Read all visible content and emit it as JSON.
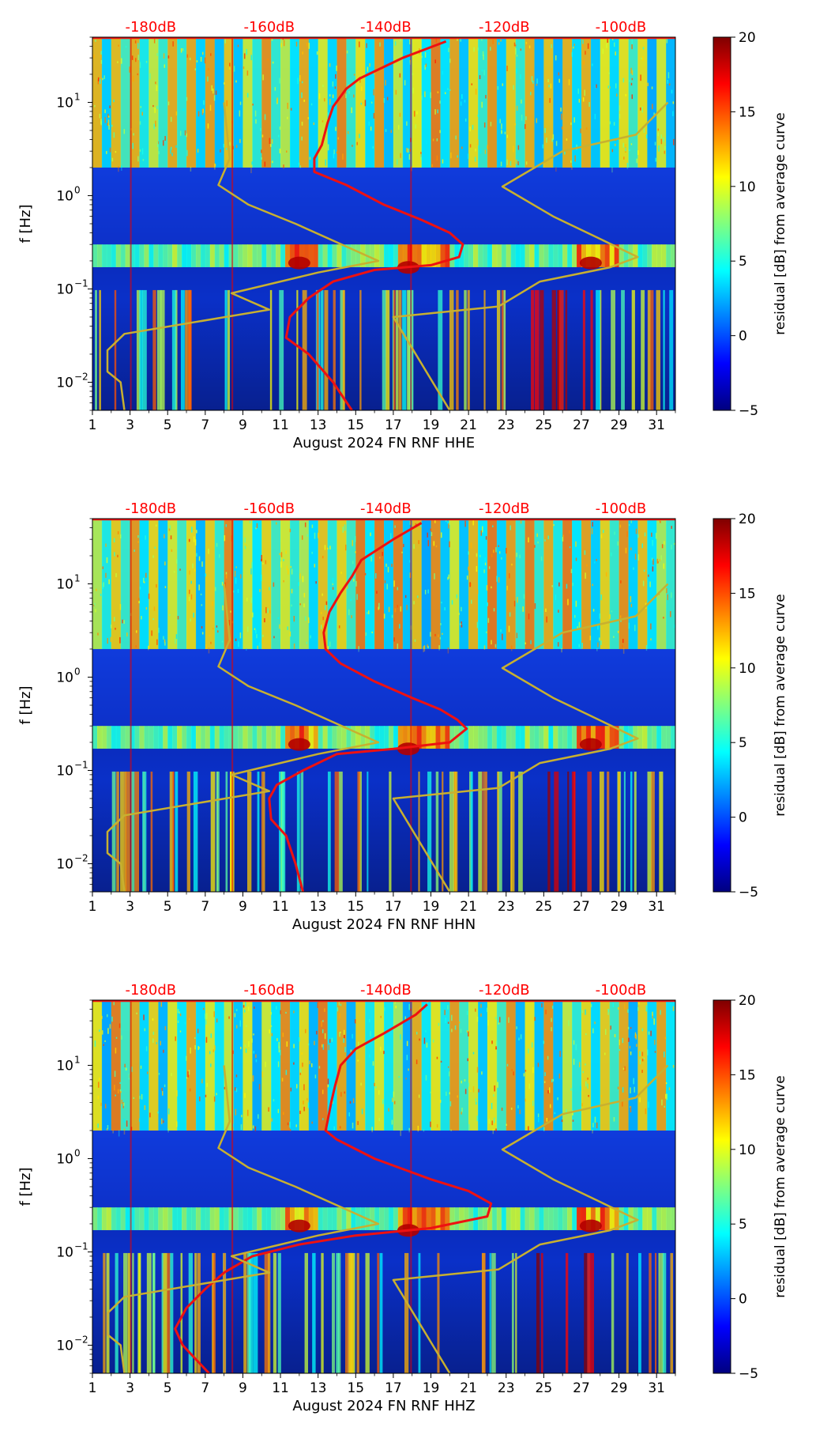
{
  "figure": {
    "colorbar": {
      "label": "residual [dB] from average curve",
      "min": -5,
      "max": 20,
      "ticks": [
        "−5",
        "0",
        "5",
        "10",
        "15",
        "20"
      ],
      "tick_values": [
        -5,
        0,
        5,
        10,
        15,
        20
      ],
      "colormap": "jet"
    },
    "colors": {
      "psd_curve": "#ee1111",
      "noise_model": "#c8b030",
      "db_labels": "#ff0000",
      "background": "#ffffff"
    }
  },
  "chart_data": [
    {
      "type": "heatmap",
      "title": "",
      "xlabel": "August 2024 FN RNF  HHE",
      "ylabel": "f [Hz]",
      "x_range": [
        1,
        32
      ],
      "y_range": [
        0.005,
        50
      ],
      "y_scale": "log",
      "x_ticks": [
        "1",
        "3",
        "5",
        "7",
        "9",
        "11",
        "13",
        "15",
        "17",
        "19",
        "21",
        "23",
        "25",
        "27",
        "29",
        "31"
      ],
      "y_ticks": [
        {
          "value": 10,
          "base": "10",
          "exp": "1"
        },
        {
          "value": 1,
          "base": "10",
          "exp": "0"
        },
        {
          "value": 0.1,
          "base": "10",
          "exp": "−1"
        },
        {
          "value": 0.01,
          "base": "10",
          "exp": "−2"
        }
      ],
      "top_labels": [
        "-180dB",
        "-160dB",
        "-140dB",
        "-120dB",
        "-100dB"
      ],
      "top_label_days": [
        4.1,
        10.4,
        16.6,
        22.9,
        29.1
      ],
      "series": [
        {
          "name": "average PSD curve",
          "color": "red",
          "points": [
            [
              19.8,
              45
            ],
            [
              17.5,
              30
            ],
            [
              15.2,
              18
            ],
            [
              14.5,
              14
            ],
            [
              13.8,
              9
            ],
            [
              13.5,
              6
            ],
            [
              13.2,
              3.5
            ],
            [
              12.8,
              2.5
            ],
            [
              12.8,
              1.8
            ],
            [
              14.5,
              1.3
            ],
            [
              16.5,
              0.8
            ],
            [
              18.5,
              0.55
            ],
            [
              20.0,
              0.4
            ],
            [
              20.7,
              0.3
            ],
            [
              20.5,
              0.22
            ],
            [
              19.0,
              0.18
            ],
            [
              16.0,
              0.16
            ],
            [
              13.8,
              0.12
            ],
            [
              12.5,
              0.08
            ],
            [
              11.5,
              0.05
            ],
            [
              11.3,
              0.03
            ],
            [
              12.5,
              0.02
            ],
            [
              13.8,
              0.01
            ],
            [
              14.8,
              0.005
            ]
          ]
        },
        {
          "name": "noise model low",
          "color": "olive",
          "points": [
            [
              8.0,
              10
            ],
            [
              8.3,
              2.5
            ],
            [
              7.7,
              1.3
            ],
            [
              9.3,
              0.8
            ],
            [
              11.8,
              0.5
            ],
            [
              16.2,
              0.2
            ],
            [
              13.0,
              0.15
            ],
            [
              8.4,
              0.09
            ],
            [
              10.4,
              0.06
            ],
            [
              2.7,
              0.033
            ],
            [
              1.8,
              0.022
            ],
            [
              1.8,
              0.013
            ],
            [
              2.5,
              0.01
            ],
            [
              2.7,
              0.005
            ]
          ]
        },
        {
          "name": "noise model high",
          "color": "olive",
          "points": [
            [
              31.6,
              10
            ],
            [
              29.9,
              4.5
            ],
            [
              26.0,
              3.0
            ],
            [
              22.8,
              1.25
            ],
            [
              25.5,
              0.6
            ],
            [
              30.0,
              0.22
            ],
            [
              28.5,
              0.17
            ],
            [
              24.8,
              0.12
            ],
            [
              22.6,
              0.065
            ],
            [
              17.0,
              0.05
            ],
            [
              20.0,
              0.005
            ]
          ]
        }
      ]
    },
    {
      "type": "heatmap",
      "title": "",
      "xlabel": "August 2024 FN RNF  HHN",
      "ylabel": "f [Hz]",
      "x_range": [
        1,
        32
      ],
      "y_range": [
        0.005,
        50
      ],
      "y_scale": "log",
      "x_ticks": [
        "1",
        "3",
        "5",
        "7",
        "9",
        "11",
        "13",
        "15",
        "17",
        "19",
        "21",
        "23",
        "25",
        "27",
        "29",
        "31"
      ],
      "y_ticks": [
        {
          "value": 10,
          "base": "10",
          "exp": "1"
        },
        {
          "value": 1,
          "base": "10",
          "exp": "0"
        },
        {
          "value": 0.1,
          "base": "10",
          "exp": "−1"
        },
        {
          "value": 0.01,
          "base": "10",
          "exp": "−2"
        }
      ],
      "top_labels": [
        "-180dB",
        "-160dB",
        "-140dB",
        "-120dB",
        "-100dB"
      ],
      "top_label_days": [
        4.1,
        10.4,
        16.6,
        22.9,
        29.1
      ],
      "series": [
        {
          "name": "average PSD curve",
          "color": "red",
          "points": [
            [
              18.5,
              45
            ],
            [
              17.0,
              30
            ],
            [
              15.3,
              18
            ],
            [
              14.8,
              12
            ],
            [
              14.2,
              8
            ],
            [
              13.6,
              5
            ],
            [
              13.3,
              3
            ],
            [
              13.4,
              2
            ],
            [
              14.2,
              1.4
            ],
            [
              16.0,
              0.9
            ],
            [
              18.0,
              0.6
            ],
            [
              19.5,
              0.45
            ],
            [
              20.4,
              0.35
            ],
            [
              20.9,
              0.28
            ],
            [
              20.0,
              0.2
            ],
            [
              17.0,
              0.17
            ],
            [
              14.0,
              0.15
            ],
            [
              12.2,
              0.1
            ],
            [
              10.8,
              0.07
            ],
            [
              10.4,
              0.05
            ],
            [
              10.5,
              0.03
            ],
            [
              11.3,
              0.02
            ],
            [
              11.8,
              0.01
            ],
            [
              12.2,
              0.005
            ]
          ]
        },
        {
          "name": "noise model low",
          "color": "olive",
          "points": [
            [
              8.0,
              10
            ],
            [
              8.3,
              2.5
            ],
            [
              7.7,
              1.3
            ],
            [
              9.3,
              0.8
            ],
            [
              11.8,
              0.5
            ],
            [
              16.2,
              0.2
            ],
            [
              13.0,
              0.15
            ],
            [
              8.4,
              0.09
            ],
            [
              10.4,
              0.06
            ],
            [
              2.7,
              0.033
            ],
            [
              1.8,
              0.022
            ],
            [
              1.8,
              0.013
            ],
            [
              2.5,
              0.01
            ],
            [
              2.7,
              0.005
            ]
          ]
        },
        {
          "name": "noise model high",
          "color": "olive",
          "points": [
            [
              31.6,
              10
            ],
            [
              29.9,
              4.5
            ],
            [
              26.0,
              3.0
            ],
            [
              22.8,
              1.25
            ],
            [
              25.5,
              0.6
            ],
            [
              30.0,
              0.22
            ],
            [
              28.5,
              0.17
            ],
            [
              24.8,
              0.12
            ],
            [
              22.6,
              0.065
            ],
            [
              17.0,
              0.05
            ],
            [
              20.0,
              0.005
            ]
          ]
        }
      ]
    },
    {
      "type": "heatmap",
      "title": "",
      "xlabel": "August 2024 FN RNF  HHZ",
      "ylabel": "f [Hz]",
      "x_range": [
        1,
        32
      ],
      "y_range": [
        0.005,
        50
      ],
      "y_scale": "log",
      "x_ticks": [
        "1",
        "3",
        "5",
        "7",
        "9",
        "11",
        "13",
        "15",
        "17",
        "19",
        "21",
        "23",
        "25",
        "27",
        "29",
        "31"
      ],
      "y_ticks": [
        {
          "value": 10,
          "base": "10",
          "exp": "1"
        },
        {
          "value": 1,
          "base": "10",
          "exp": "0"
        },
        {
          "value": 0.1,
          "base": "10",
          "exp": "−1"
        },
        {
          "value": 0.01,
          "base": "10",
          "exp": "−2"
        }
      ],
      "top_labels": [
        "-180dB",
        "-160dB",
        "-140dB",
        "-120dB",
        "-100dB"
      ],
      "top_label_days": [
        4.1,
        10.4,
        16.6,
        22.9,
        29.1
      ],
      "series": [
        {
          "name": "average PSD curve",
          "color": "red",
          "points": [
            [
              18.8,
              45
            ],
            [
              18.2,
              35
            ],
            [
              16.5,
              22
            ],
            [
              15.0,
              15
            ],
            [
              14.2,
              10
            ],
            [
              13.9,
              6
            ],
            [
              13.7,
              4
            ],
            [
              13.5,
              2.5
            ],
            [
              13.4,
              2.0
            ],
            [
              14.0,
              1.6
            ],
            [
              16.0,
              1.0
            ],
            [
              19.0,
              0.6
            ],
            [
              21.0,
              0.45
            ],
            [
              22.2,
              0.33
            ],
            [
              22.0,
              0.24
            ],
            [
              19.0,
              0.18
            ],
            [
              15.0,
              0.15
            ],
            [
              12.0,
              0.12
            ],
            [
              9.5,
              0.09
            ],
            [
              8.0,
              0.06
            ],
            [
              7.0,
              0.04
            ],
            [
              6.0,
              0.025
            ],
            [
              5.4,
              0.015
            ],
            [
              5.8,
              0.01
            ],
            [
              7.2,
              0.005
            ]
          ]
        },
        {
          "name": "noise model low",
          "color": "olive",
          "points": [
            [
              8.0,
              10
            ],
            [
              8.3,
              2.5
            ],
            [
              7.7,
              1.3
            ],
            [
              9.3,
              0.8
            ],
            [
              11.8,
              0.5
            ],
            [
              16.2,
              0.2
            ],
            [
              13.0,
              0.15
            ],
            [
              8.4,
              0.09
            ],
            [
              10.4,
              0.06
            ],
            [
              2.7,
              0.033
            ],
            [
              1.8,
              0.022
            ],
            [
              1.8,
              0.013
            ],
            [
              2.5,
              0.01
            ],
            [
              2.7,
              0.005
            ]
          ]
        },
        {
          "name": "noise model high",
          "color": "olive",
          "points": [
            [
              31.6,
              10
            ],
            [
              29.9,
              4.5
            ],
            [
              26.0,
              3.0
            ],
            [
              22.8,
              1.25
            ],
            [
              25.5,
              0.6
            ],
            [
              30.0,
              0.22
            ],
            [
              28.5,
              0.17
            ],
            [
              24.8,
              0.12
            ],
            [
              22.6,
              0.065
            ],
            [
              17.0,
              0.05
            ],
            [
              20.0,
              0.005
            ]
          ]
        }
      ]
    }
  ]
}
